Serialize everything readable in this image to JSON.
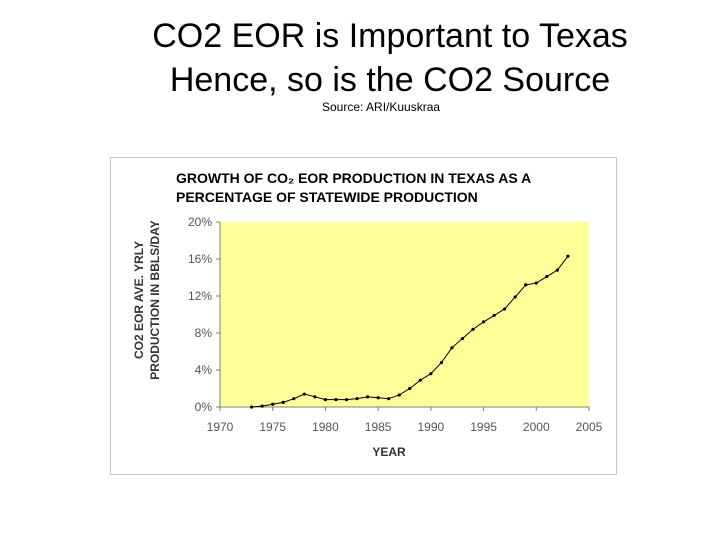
{
  "slide": {
    "title_line1": "CO2 EOR is Important to Texas",
    "title_line2": "Hence, so is the CO2 Source",
    "source": "Source: ARI/Kuuskraa"
  },
  "chart_data": {
    "type": "line",
    "title_line1": "GROWTH OF CO₂ EOR PRODUCTION IN TEXAS AS A",
    "title_line2": "PERCENTAGE OF STATEWIDE PRODUCTION",
    "xlabel": "YEAR",
    "ylabel_line1": "CO2 EOR AVE. YRLY",
    "ylabel_line2": "PRODUCTION IN BBLS/DAY",
    "xlim": [
      1970,
      2005
    ],
    "ylim": [
      0,
      20
    ],
    "x_ticks": [
      "1970",
      "1975",
      "1980",
      "1985",
      "1990",
      "1995",
      "2000",
      "2005"
    ],
    "y_ticks": [
      "0%",
      "4%",
      "8%",
      "12%",
      "16%",
      "20%"
    ],
    "plot_background": "#ffff99",
    "line_color": "#000000",
    "grid": false,
    "series": [
      {
        "x": [
          1973,
          1974,
          1975,
          1976,
          1977,
          1978,
          1979,
          1980,
          1981,
          1982,
          1983,
          1984,
          1985,
          1986,
          1987,
          1988,
          1989,
          1990,
          1991,
          1992,
          1993,
          1994,
          1995,
          1996,
          1997,
          1998,
          1999,
          2000,
          2001,
          2002,
          2003
        ],
        "y": [
          0.0,
          0.1,
          0.3,
          0.5,
          0.9,
          1.4,
          1.1,
          0.8,
          0.8,
          0.8,
          0.9,
          1.1,
          1.0,
          0.9,
          1.3,
          2.0,
          2.9,
          3.6,
          4.8,
          6.4,
          7.4,
          8.4,
          9.2,
          9.9,
          10.6,
          11.9,
          13.2,
          13.4,
          14.1,
          14.8,
          16.3
        ]
      }
    ]
  }
}
